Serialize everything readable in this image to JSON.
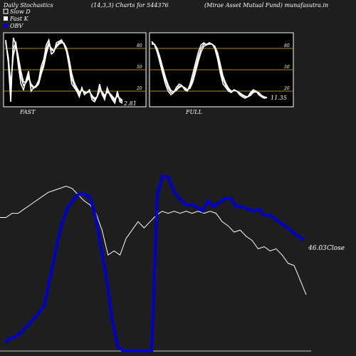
{
  "header": {
    "left": "Daily Stochastics",
    "center": "(14,3,3) Charts for 544376",
    "right": "(Mirae  Asset Mutual Fund) munafasutra.in"
  },
  "legend": [
    {
      "label": "Slow  D",
      "color": "#ffffff"
    },
    {
      "label": "Fast K",
      "color": "#ffffff"
    },
    {
      "label": "OBV",
      "color": "#0000cc"
    }
  ],
  "colors": {
    "background": "#1e1e1e",
    "panel": "#000000",
    "level_line": "#b8860b",
    "stoch": "#ffffff",
    "price": "#ffffff",
    "obv": "#0000cc"
  },
  "chart_data": [
    {
      "type": "line",
      "name": "FAST",
      "caption": "FAST",
      "ylim": [
        0,
        100
      ],
      "levels": [
        20,
        50,
        80
      ],
      "tick_labels": [
        "80",
        "50",
        "20"
      ],
      "last_value_label": "2.81",
      "series": [
        {
          "values": [
            92,
            60,
            5,
            95,
            85,
            55,
            30,
            22,
            35,
            48,
            20,
            25,
            28,
            35,
            55,
            65,
            85,
            92,
            72,
            75,
            88,
            90,
            92,
            85,
            75,
            55,
            30,
            25,
            20,
            12,
            25,
            15,
            18,
            22,
            8,
            5,
            12,
            30,
            15,
            8,
            25,
            15,
            8,
            3,
            20,
            5,
            3
          ]
        },
        {
          "values": [
            90,
            65,
            20,
            80,
            88,
            62,
            40,
            28,
            32,
            42,
            28,
            24,
            26,
            32,
            48,
            60,
            78,
            88,
            78,
            76,
            84,
            88,
            90,
            87,
            78,
            60,
            38,
            28,
            22,
            16,
            22,
            18,
            18,
            20,
            12,
            8,
            12,
            24,
            18,
            11,
            20,
            16,
            11,
            6,
            15,
            8,
            5
          ]
        },
        {
          "values": [
            88,
            68,
            30,
            70,
            85,
            68,
            48,
            33,
            32,
            38,
            30,
            26,
            26,
            30,
            44,
            55,
            72,
            85,
            80,
            77,
            82,
            86,
            88,
            87,
            80,
            65,
            45,
            32,
            25,
            19,
            21,
            19,
            18,
            19,
            14,
            10,
            12,
            20,
            19,
            14,
            18,
            17,
            13,
            9,
            13,
            10,
            7
          ]
        }
      ]
    },
    {
      "type": "line",
      "name": "FULL",
      "caption": "FULL",
      "ylim": [
        0,
        100
      ],
      "levels": [
        20,
        50,
        80
      ],
      "tick_labels": [
        "80",
        "50",
        "20"
      ],
      "last_value_label": "11.35",
      "series": [
        {
          "values": [
            90,
            85,
            75,
            60,
            45,
            30,
            20,
            15,
            18,
            25,
            30,
            28,
            22,
            20,
            30,
            45,
            60,
            75,
            85,
            88,
            85,
            88,
            86,
            80,
            65,
            45,
            30,
            25,
            20,
            18,
            22,
            20,
            15,
            12,
            10,
            12,
            18,
            22,
            20,
            15,
            12,
            10,
            11
          ]
        },
        {
          "values": [
            88,
            86,
            78,
            64,
            50,
            36,
            25,
            18,
            18,
            22,
            27,
            27,
            24,
            21,
            26,
            38,
            53,
            68,
            80,
            86,
            86,
            87,
            86,
            82,
            70,
            52,
            36,
            28,
            22,
            19,
            21,
            20,
            17,
            14,
            12,
            12,
            16,
            20,
            20,
            17,
            13,
            11,
            11
          ]
        },
        {
          "values": [
            86,
            86,
            80,
            68,
            54,
            40,
            29,
            21,
            19,
            21,
            25,
            27,
            25,
            22,
            24,
            33,
            47,
            62,
            75,
            83,
            85,
            86,
            86,
            83,
            74,
            58,
            41,
            31,
            24,
            20,
            21,
            20,
            18,
            15,
            13,
            12,
            14,
            18,
            19,
            18,
            14,
            12,
            11
          ]
        }
      ]
    },
    {
      "type": "line",
      "name": "Close",
      "end_label": "46.03",
      "end_label_suffix": "Close",
      "values": [
        64,
        64,
        66,
        66,
        68,
        70,
        72,
        74,
        76,
        77,
        78,
        79,
        78,
        75,
        72,
        70,
        66,
        58,
        46,
        48,
        46,
        54,
        58,
        62,
        59,
        62,
        65,
        67,
        66,
        67,
        66,
        67,
        66,
        67,
        66,
        67,
        66,
        62,
        60,
        57,
        58,
        55,
        53,
        49,
        50,
        48,
        49,
        46,
        42,
        41,
        34,
        27
      ]
    },
    {
      "type": "line",
      "name": "OBV",
      "values": [
        4,
        6,
        7,
        9,
        12,
        15,
        18,
        22,
        35,
        48,
        60,
        68,
        72,
        75,
        75,
        74,
        65,
        50,
        35,
        15,
        2,
        0,
        0,
        0,
        0,
        0,
        0,
        75,
        84,
        83,
        76,
        73,
        70,
        70,
        69,
        67,
        72,
        69,
        71,
        73,
        73,
        69,
        69,
        68,
        67,
        68,
        65,
        65,
        63,
        61,
        59,
        57,
        55,
        53
      ]
    }
  ]
}
